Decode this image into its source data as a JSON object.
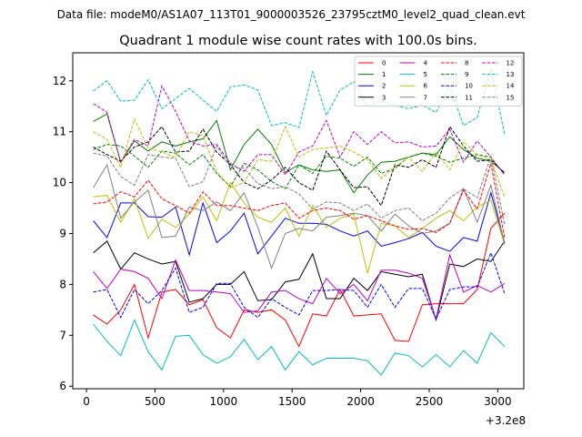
{
  "suptitle": "Data file: modeM0/AS1A07_113T01_9000003526_23795cztM0_level2_quad_clean.evt",
  "chart_data": {
    "type": "line",
    "title": "Quadrant 1 module wise count rates with 100.0s bins.",
    "xlabel": "",
    "ylabel": "",
    "x_offset_label": "+3.2e8",
    "xlim": [
      -100,
      3190
    ],
    "ylim": [
      5.95,
      12.55
    ],
    "xticks": [
      0,
      500,
      1000,
      1500,
      2000,
      2500,
      3000
    ],
    "yticks": [
      6,
      7,
      8,
      9,
      10,
      11,
      12
    ],
    "legend_position": "top-right",
    "x": [
      50,
      150,
      250,
      350,
      450,
      550,
      650,
      750,
      850,
      950,
      1050,
      1150,
      1250,
      1350,
      1450,
      1550,
      1650,
      1750,
      1850,
      1950,
      2050,
      2150,
      2250,
      2350,
      2450,
      2550,
      2650,
      2750,
      2850,
      2950,
      3050
    ],
    "series": [
      {
        "name": "0",
        "color": "#ff0000",
        "dash": "solid",
        "values": [
          7.4,
          7.22,
          7.5,
          8.0,
          6.95,
          7.85,
          7.9,
          7.6,
          7.7,
          7.15,
          6.95,
          7.5,
          7.45,
          7.5,
          7.3,
          6.78,
          7.42,
          7.38,
          7.9,
          7.38,
          7.4,
          7.42,
          6.9,
          6.88,
          7.6,
          7.62,
          7.62,
          7.62,
          7.9,
          9.1,
          9.4
        ]
      },
      {
        "name": "1",
        "color": "#008000",
        "dash": "solid",
        "values": [
          11.2,
          11.35,
          10.4,
          10.82,
          10.62,
          10.8,
          10.72,
          10.8,
          10.86,
          11.22,
          10.25,
          10.75,
          11.05,
          10.75,
          10.2,
          10.35,
          10.25,
          10.22,
          10.25,
          9.8,
          10.15,
          10.4,
          10.42,
          10.5,
          10.58,
          10.55,
          10.9,
          10.65,
          10.48,
          10.42,
          10.2
        ]
      },
      {
        "name": "2",
        "color": "#0000ff",
        "dash": "solid",
        "values": [
          9.25,
          8.92,
          9.6,
          9.6,
          9.33,
          9.32,
          9.52,
          8.58,
          9.6,
          8.82,
          9.05,
          9.4,
          8.6,
          8.95,
          9.3,
          9.2,
          9.2,
          9.18,
          9.05,
          8.95,
          9.05,
          8.75,
          8.82,
          8.9,
          9.02,
          8.75,
          8.65,
          8.92,
          8.85,
          9.8,
          8.82
        ]
      },
      {
        "name": "3",
        "color": "#000000",
        "dash": "solid",
        "values": [
          8.62,
          8.85,
          8.3,
          8.62,
          8.5,
          8.4,
          8.45,
          7.65,
          7.72,
          8.0,
          8.0,
          8.25,
          7.68,
          7.7,
          8.05,
          8.1,
          8.6,
          7.72,
          7.72,
          8.12,
          7.88,
          8.25,
          8.2,
          8.15,
          8.2,
          7.3,
          8.4,
          8.35,
          8.5,
          8.45,
          8.85
        ]
      },
      {
        "name": "4",
        "color": "#bf00bf",
        "dash": "solid",
        "values": [
          8.25,
          7.92,
          8.3,
          8.25,
          8.12,
          7.72,
          8.48,
          7.88,
          7.88,
          7.85,
          7.82,
          7.45,
          7.48,
          7.85,
          7.88,
          7.72,
          7.62,
          8.12,
          7.82,
          8.0,
          7.68,
          8.28,
          8.28,
          8.22,
          8.12,
          7.32,
          8.58,
          7.85,
          7.98,
          7.85,
          8.02
        ]
      },
      {
        "name": "5",
        "color": "#00bfbf",
        "dash": "solid",
        "values": [
          7.22,
          6.88,
          6.6,
          7.3,
          6.68,
          6.32,
          6.98,
          7.0,
          6.62,
          6.45,
          6.58,
          6.92,
          6.52,
          6.78,
          6.32,
          6.68,
          6.42,
          6.55,
          6.55,
          6.55,
          6.5,
          6.22,
          6.65,
          6.6,
          6.38,
          6.62,
          6.38,
          6.7,
          6.45,
          7.05,
          6.78
        ]
      },
      {
        "name": "6",
        "color": "#bfbf00",
        "dash": "solid",
        "values": [
          9.72,
          9.75,
          9.22,
          9.68,
          8.9,
          9.28,
          9.12,
          9.38,
          9.72,
          9.25,
          10.0,
          9.6,
          9.32,
          9.22,
          9.5,
          8.95,
          9.55,
          9.12,
          9.3,
          9.38,
          8.22,
          9.2,
          9.15,
          8.92,
          9.1,
          9.3,
          9.45,
          9.25,
          9.52,
          9.65,
          8.78
        ]
      },
      {
        "name": "7",
        "color": "#808080",
        "dash": "solid",
        "values": [
          9.9,
          10.35,
          9.3,
          9.62,
          9.85,
          8.92,
          8.95,
          9.52,
          9.45,
          9.62,
          9.45,
          9.8,
          9.12,
          8.32,
          9.0,
          9.1,
          9.05,
          9.32,
          9.35,
          9.4,
          9.35,
          9.05,
          9.38,
          9.15,
          9.0,
          9.05,
          9.2,
          9.88,
          9.22,
          9.95,
          8.8
        ]
      },
      {
        "name": "8",
        "color": "#ff0000",
        "dash": "dashed",
        "values": [
          9.58,
          9.62,
          9.82,
          9.72,
          10.05,
          9.68,
          9.55,
          9.4,
          9.82,
          9.55,
          9.55,
          9.5,
          9.45,
          9.55,
          9.6,
          9.3,
          9.45,
          9.5,
          9.45,
          9.28,
          9.35,
          9.25,
          9.15,
          9.08,
          9.1,
          9.02,
          9.2,
          9.85,
          9.48,
          10.38,
          8.92
        ]
      },
      {
        "name": "9",
        "color": "#008000",
        "dash": "dashed",
        "values": [
          10.65,
          10.75,
          10.72,
          10.52,
          10.3,
          10.62,
          10.58,
          10.35,
          10.55,
          10.18,
          9.92,
          10.38,
          10.25,
          10.02,
          9.88,
          10.35,
          10.18,
          10.52,
          10.48,
          10.32,
          10.5,
          10.18,
          10.28,
          10.5,
          10.58,
          10.52,
          10.4,
          10.48,
          10.55,
          10.5,
          10.15
        ]
      },
      {
        "name": "10",
        "color": "#0000ff",
        "dash": "dashed",
        "values": [
          7.85,
          7.9,
          7.35,
          7.9,
          7.62,
          7.88,
          8.32,
          7.45,
          7.55,
          8.02,
          8.02,
          7.55,
          7.35,
          7.72,
          7.55,
          7.4,
          7.88,
          7.88,
          7.9,
          7.88,
          7.55,
          8.0,
          7.55,
          7.92,
          7.92,
          7.32,
          7.9,
          7.95,
          7.95,
          8.62,
          7.82
        ]
      },
      {
        "name": "11",
        "color": "#000000",
        "dash": "dashed",
        "values": [
          10.7,
          10.55,
          10.42,
          10.7,
          10.8,
          11.1,
          10.6,
          10.62,
          11.05,
          10.6,
          10.35,
          10.0,
          9.88,
          10.05,
          10.3,
          10.0,
          9.85,
          10.62,
          10.25,
          9.9,
          9.92,
          9.55,
          10.35,
          10.3,
          10.45,
          10.3,
          11.1,
          10.72,
          10.42,
          10.45,
          10.18
        ]
      },
      {
        "name": "12",
        "color": "#bf00bf",
        "dash": "dashed",
        "values": [
          11.55,
          11.38,
          10.4,
          10.85,
          10.72,
          11.9,
          11.4,
          10.82,
          10.72,
          10.75,
          10.38,
          10.22,
          10.55,
          10.55,
          10.15,
          10.6,
          10.72,
          11.22,
          10.5,
          11.0,
          10.75,
          11.0,
          10.78,
          10.8,
          10.7,
          10.72,
          11.05,
          10.4,
          10.82,
          10.5,
          10.15
        ]
      },
      {
        "name": "13",
        "color": "#00bfbf",
        "dash": "dashed",
        "values": [
          11.8,
          12.0,
          11.6,
          11.62,
          12.02,
          11.45,
          11.65,
          11.85,
          11.62,
          11.4,
          11.88,
          11.92,
          11.82,
          11.12,
          11.18,
          11.08,
          12.18,
          11.32,
          11.82,
          11.98,
          11.5,
          11.6,
          11.52,
          11.45,
          11.52,
          11.38,
          11.9,
          11.12,
          11.28,
          12.25,
          10.95
        ]
      },
      {
        "name": "14",
        "color": "#bfbf00",
        "dash": "dashed",
        "values": [
          11.0,
          10.85,
          10.3,
          11.25,
          10.68,
          10.6,
          10.5,
          11.0,
          10.92,
          10.22,
          9.9,
          10.0,
          10.45,
          10.42,
          11.1,
          10.5,
          10.65,
          10.68,
          10.72,
          10.6,
          10.45,
          10.08,
          10.3,
          10.5,
          10.22,
          10.6,
          10.25,
          10.8,
          10.55,
          10.45,
          9.72
        ]
      },
      {
        "name": "15",
        "color": "#808080",
        "dash": "dashed",
        "values": [
          10.58,
          10.52,
          10.12,
          9.95,
          10.55,
          10.5,
          10.48,
          9.92,
          10.02,
          10.72,
          10.3,
          10.28,
          9.98,
          9.88,
          9.92,
          9.78,
          9.48,
          9.62,
          9.6,
          9.45,
          9.58,
          9.3,
          9.45,
          9.5,
          9.25,
          9.4,
          9.7,
          9.88,
          9.7,
          10.52,
          9.18
        ]
      }
    ]
  }
}
